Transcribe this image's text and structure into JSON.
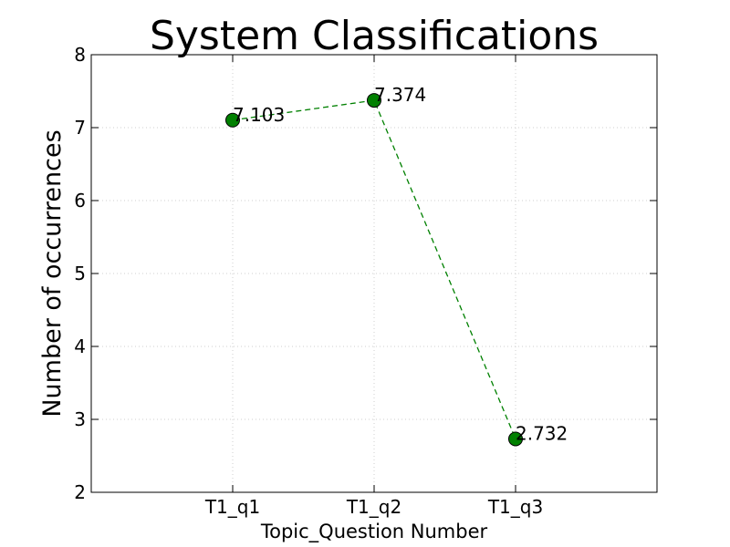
{
  "chart_data": {
    "type": "line",
    "title": "System Classifications",
    "xlabel": "Topic_Question Number",
    "ylabel": "Number of occurrences",
    "categories": [
      "T1_q1",
      "T1_q2",
      "T1_q3"
    ],
    "series": [
      {
        "values": [
          7.103,
          7.374,
          2.732
        ],
        "labels": [
          "7.103",
          "7.374",
          "2.732"
        ],
        "color": "#008000",
        "line_style": "dashed",
        "marker": "circle"
      }
    ],
    "ylim": [
      2,
      8
    ],
    "yticks": [
      "2",
      "3",
      "4",
      "5",
      "6",
      "7",
      "8"
    ],
    "grid": true
  }
}
